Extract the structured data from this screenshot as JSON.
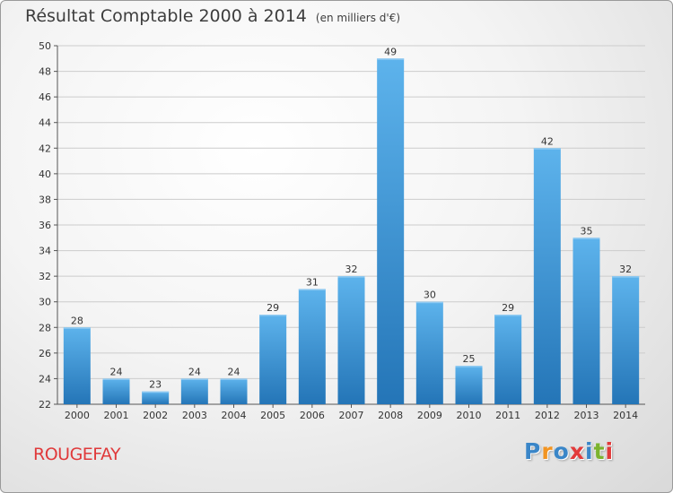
{
  "commune": "ROUGEFAY",
  "brand": {
    "letters": [
      "P",
      "r",
      "o",
      "x",
      "i",
      "t",
      "i"
    ],
    "colors": [
      "#3a86c8",
      "#f29421",
      "#3a86c8",
      "#e23b3b",
      "#3a86c8",
      "#7cb32e",
      "#e23b3b"
    ]
  },
  "colors": {
    "bar": "#3d97dc",
    "bar_light": "#5db3ec",
    "bar_dark": "#2475b7",
    "grid": "#cccccc",
    "axis": "#555555"
  },
  "chart_data": {
    "type": "bar",
    "title": "Résultat Comptable 2000 à 2014",
    "subtitle": "(en milliers d'€)",
    "xlabel": "",
    "ylabel": "",
    "categories": [
      "2000",
      "2001",
      "2002",
      "2003",
      "2004",
      "2005",
      "2006",
      "2007",
      "2008",
      "2009",
      "2010",
      "2011",
      "2012",
      "2013",
      "2014"
    ],
    "values": [
      28,
      24,
      23,
      24,
      24,
      29,
      31,
      32,
      49,
      30,
      25,
      29,
      42,
      35,
      32
    ],
    "ylim": [
      22,
      50
    ],
    "yticks": [
      22,
      24,
      26,
      28,
      30,
      32,
      34,
      36,
      38,
      40,
      42,
      44,
      46,
      48,
      50
    ],
    "grid": true,
    "legend": "none"
  }
}
